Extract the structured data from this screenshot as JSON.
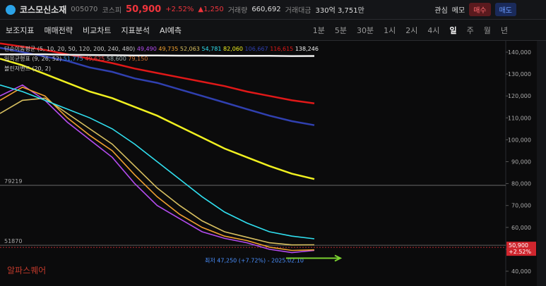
{
  "header": {
    "name": "코스모신소재",
    "code": "005070",
    "market": "코스피",
    "price": "50,900",
    "change_pct": "+2.52%",
    "change": "▲1,250",
    "volume_label": "거래량",
    "volume": "660,692",
    "amount_label": "거래대금",
    "amount": "330억 3,751만",
    "buttons": [
      "관심",
      "메모",
      "매수",
      "매도"
    ]
  },
  "toolbar": {
    "tools": [
      "보조지표",
      "매매전략",
      "비교차트",
      "지표분석",
      "AI예측"
    ],
    "periods": [
      "1분",
      "5분",
      "30분",
      "1시",
      "2시",
      "4시",
      "일",
      "주",
      "월",
      "년"
    ],
    "active_period_index": 6
  },
  "chart_data": {
    "type": "line",
    "legend_title": "단순이동평균 (5, 10, 20, 50, 120, 200, 240, 480)",
    "ichimoku": {
      "title": "일목균형표 (9, 26, 52)",
      "values": [
        "51,775",
        "49,625",
        "58,600",
        "79,150"
      ]
    },
    "bollinger": {
      "title": "볼린저밴드 (20, 2)"
    },
    "categories": [
      null,
      null,
      null,
      null,
      null,
      null,
      null,
      null,
      null,
      null,
      null,
      null,
      null,
      null,
      null
    ],
    "series": [
      {
        "color": "#b44cf0",
        "label": "49,490",
        "values": [
          120000,
          125000,
          118000,
          108000,
          100000,
          92000,
          80000,
          70000,
          64000,
          58000,
          55000,
          53000,
          50000,
          48500,
          49490
        ]
      },
      {
        "color": "#f0a030",
        "label": "49,735",
        "values": [
          118000,
          124000,
          120000,
          110000,
          102000,
          95000,
          84000,
          74000,
          66000,
          60000,
          56000,
          54000,
          51000,
          49500,
          49735
        ]
      },
      {
        "color": "#d8c060",
        "label": "52,063",
        "values": [
          112000,
          118000,
          119000,
          112000,
          105000,
          98000,
          88000,
          78000,
          70000,
          63000,
          58000,
          55500,
          53000,
          52000,
          52063
        ]
      },
      {
        "color": "#30e0f0",
        "label": "54,781",
        "values": [
          125000,
          122000,
          118000,
          114000,
          110000,
          105000,
          98000,
          90000,
          82000,
          74000,
          67000,
          62000,
          58000,
          56000,
          54781
        ]
      },
      {
        "color": "#f0f020",
        "label": "82,060",
        "values": [
          137000,
          134000,
          130000,
          126000,
          122000,
          119000,
          115000,
          111000,
          106000,
          101000,
          96000,
          92000,
          88000,
          84500,
          82060
        ]
      },
      {
        "color": "#3040b0",
        "label": "106,667",
        "values": [
          142000,
          140000,
          138000,
          136000,
          133000,
          131000,
          128000,
          126000,
          123000,
          120000,
          117000,
          114000,
          111000,
          108500,
          106667
        ]
      },
      {
        "color": "#e01818",
        "label": "116,615",
        "values": [
          144000,
          142500,
          141000,
          139000,
          137000,
          135000,
          132500,
          130500,
          128500,
          126500,
          124500,
          122000,
          120000,
          118000,
          116615
        ]
      },
      {
        "color": "#f0f0f0",
        "label": "138,246",
        "values": [
          139000,
          139000,
          139000,
          138800,
          138700,
          138600,
          138500,
          138500,
          138400,
          138400,
          138300,
          138300,
          138300,
          138200,
          138246
        ]
      }
    ],
    "ylim": [
      33250,
      145150
    ],
    "yticks": [
      {
        "value": 40000,
        "label": "40,000"
      },
      {
        "value": 50000,
        "label": "50,000"
      },
      {
        "value": 60000,
        "label": "60,000"
      },
      {
        "value": 70000,
        "label": "70,000"
      },
      {
        "value": 80000,
        "label": "80,000"
      },
      {
        "value": 90000,
        "label": "90,000"
      },
      {
        "value": 100000,
        "label": "100,000"
      },
      {
        "value": 110000,
        "label": "110,000"
      },
      {
        "value": 120000,
        "label": "120,000"
      },
      {
        "value": 130000,
        "label": "130,000"
      },
      {
        "value": 140000,
        "label": "140,000"
      }
    ],
    "reference_lines": [
      79219,
      51870
    ],
    "current_price": {
      "value": 50900,
      "label": "50,900",
      "change": "+2.52%"
    },
    "annotation": "최저 47,250 (+7.72%) - 2025.02.10",
    "watermark": "알파스퀘어"
  }
}
